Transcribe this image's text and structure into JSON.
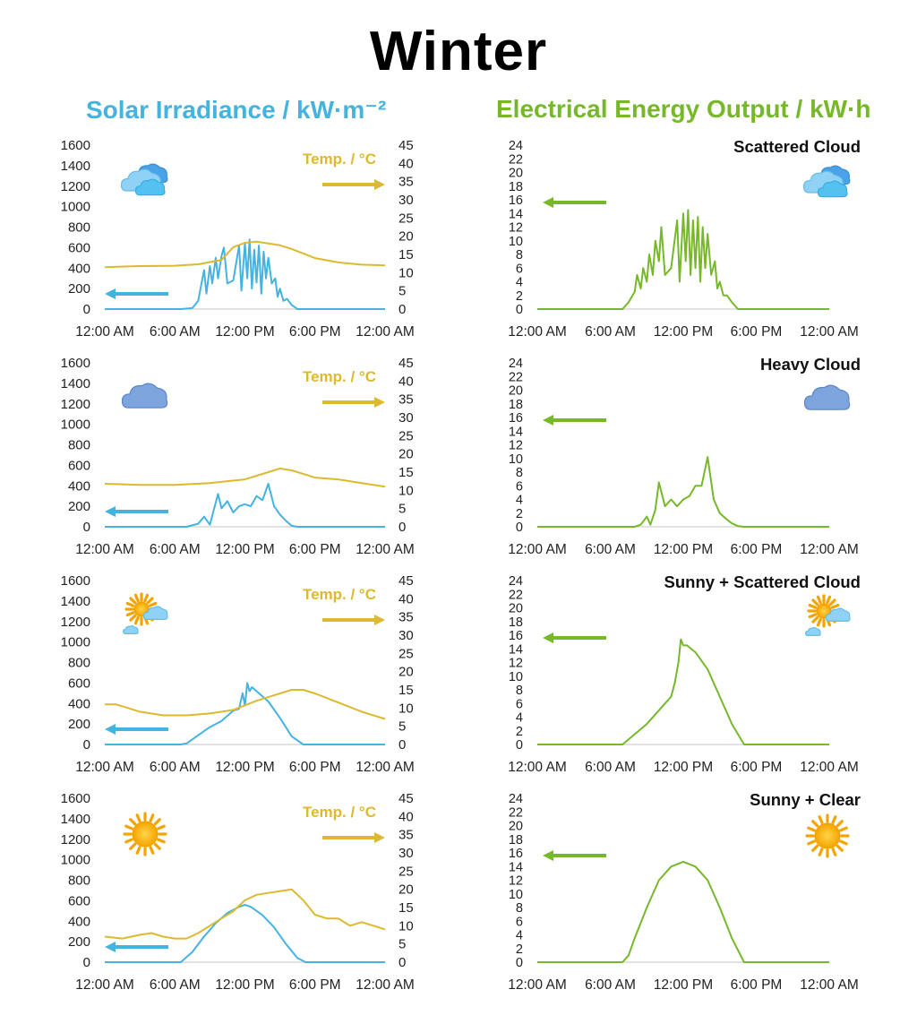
{
  "page_title": "Winter",
  "left_heading": "Solar Irradiance / kW·m⁻²",
  "right_heading": "Electrical Energy Output / kW·h",
  "colors": {
    "irradiance": "#45b3e0",
    "temperature": "#dcb92e",
    "energy": "#76b82a",
    "axis": "#d9d9d9"
  },
  "chart_data": [
    {
      "type": "line",
      "panel": "irradiance",
      "condition_icon": "scattered-cloud-icon",
      "x_ticks": [
        "12:00 AM",
        "6:00 AM",
        "12:00 PM",
        "6:00 PM",
        "12:00 AM"
      ],
      "x_range": [
        0,
        24
      ],
      "y_ticks": [
        "0",
        "200",
        "400",
        "600",
        "800",
        "1000",
        "1200",
        "1400",
        "1600"
      ],
      "ylim": [
        0,
        1600
      ],
      "y2_ticks": [
        "0",
        "5",
        "10",
        "15",
        "20",
        "25",
        "30",
        "35",
        "40",
        "45"
      ],
      "y2lim": [
        0,
        45
      ],
      "y2label": "Temp. / °C",
      "series": [
        {
          "role": "irradiance",
          "x": [
            0,
            6.5,
            7.5,
            8,
            8.2,
            8.5,
            8.7,
            9,
            9.2,
            9.5,
            9.7,
            10,
            10.2,
            10.5,
            11,
            11.5,
            11.7,
            12,
            12.2,
            12.4,
            12.6,
            12.8,
            13,
            13.2,
            13.4,
            13.6,
            13.8,
            14,
            14.3,
            14.6,
            14.8,
            15,
            15.3,
            15.6,
            16,
            16.5,
            24
          ],
          "y": [
            0,
            0,
            10,
            80,
            200,
            380,
            150,
            420,
            250,
            500,
            300,
            520,
            600,
            250,
            280,
            620,
            180,
            640,
            300,
            680,
            200,
            580,
            260,
            620,
            150,
            560,
            300,
            500,
            250,
            300,
            120,
            200,
            80,
            100,
            40,
            0,
            0
          ]
        },
        {
          "role": "temperature",
          "x": [
            0,
            3,
            6,
            8,
            10,
            11,
            12,
            13,
            14,
            15,
            16,
            18,
            20,
            22,
            24
          ],
          "y": [
            11.5,
            11.8,
            11.9,
            12.3,
            13.5,
            17,
            18.2,
            18.5,
            18,
            17.5,
            16.5,
            14,
            12.8,
            12.2,
            12
          ]
        }
      ]
    },
    {
      "type": "line",
      "panel": "energy",
      "title": "Scattered Cloud",
      "condition_icon": "scattered-cloud-icon",
      "x_ticks": [
        "12:00 AM",
        "6:00 AM",
        "12:00 PM",
        "6:00 PM",
        "12:00 AM"
      ],
      "x_range": [
        0,
        24
      ],
      "y_ticks": [
        "0",
        "2",
        "4",
        "6",
        "8",
        "10",
        "12",
        "14",
        "16",
        "18",
        "20",
        "22",
        "24"
      ],
      "ylim": [
        0,
        24
      ],
      "series": [
        {
          "role": "energy",
          "x": [
            0,
            7,
            7.5,
            8,
            8.2,
            8.5,
            8.7,
            9,
            9.2,
            9.5,
            9.7,
            10,
            10.2,
            10.5,
            11,
            11.5,
            11.7,
            12,
            12.2,
            12.4,
            12.6,
            12.8,
            13,
            13.2,
            13.4,
            13.6,
            13.8,
            14,
            14.3,
            14.6,
            14.8,
            15,
            15.3,
            15.6,
            16,
            16.5,
            24
          ],
          "y": [
            0,
            0,
            1,
            2.5,
            5,
            3,
            6,
            4,
            8,
            5,
            10,
            7,
            12,
            5,
            6,
            13,
            4,
            14,
            7,
            14.5,
            5,
            13,
            6,
            13.5,
            4,
            12,
            6,
            11,
            5,
            7,
            3,
            4,
            2,
            2,
            1,
            0,
            0
          ]
        }
      ]
    },
    {
      "type": "line",
      "panel": "irradiance",
      "condition_icon": "heavy-cloud-icon",
      "x_ticks": [
        "12:00 AM",
        "6:00 AM",
        "12:00 PM",
        "6:00 PM",
        "12:00 AM"
      ],
      "x_range": [
        0,
        24
      ],
      "y_ticks": [
        "0",
        "200",
        "400",
        "600",
        "800",
        "1000",
        "1200",
        "1400",
        "1600"
      ],
      "ylim": [
        0,
        1600
      ],
      "y2_ticks": [
        "0",
        "5",
        "10",
        "15",
        "20",
        "25",
        "30",
        "35",
        "40",
        "45"
      ],
      "y2lim": [
        0,
        45
      ],
      "y2label": "Temp. / °C",
      "series": [
        {
          "role": "irradiance",
          "x": [
            0,
            7,
            8,
            8.5,
            9,
            9.3,
            9.7,
            10,
            10.5,
            11,
            11.5,
            12,
            12.5,
            13,
            13.5,
            14,
            14.5,
            15,
            15.5,
            16,
            16.5,
            24
          ],
          "y": [
            0,
            0,
            30,
            100,
            20,
            150,
            320,
            180,
            250,
            140,
            200,
            220,
            200,
            300,
            260,
            420,
            200,
            120,
            60,
            10,
            0,
            0
          ]
        },
        {
          "role": "temperature",
          "x": [
            0,
            3,
            6,
            9,
            12,
            14,
            15,
            16,
            18,
            20,
            22,
            24
          ],
          "y": [
            11.8,
            11.5,
            11.5,
            12,
            13,
            15,
            16,
            15.5,
            13.5,
            13,
            12,
            11
          ]
        }
      ]
    },
    {
      "type": "line",
      "panel": "energy",
      "title": "Heavy Cloud",
      "condition_icon": "heavy-cloud-icon",
      "x_ticks": [
        "12:00 AM",
        "6:00 AM",
        "12:00 PM",
        "6:00 PM",
        "12:00 AM"
      ],
      "x_range": [
        0,
        24
      ],
      "y_ticks": [
        "0",
        "2",
        "4",
        "6",
        "8",
        "10",
        "12",
        "14",
        "16",
        "18",
        "20",
        "22",
        "24"
      ],
      "ylim": [
        0,
        24
      ],
      "series": [
        {
          "role": "energy",
          "x": [
            0,
            8,
            8.5,
            9,
            9.3,
            9.7,
            10,
            10.5,
            11,
            11.5,
            12,
            12.5,
            13,
            13.5,
            14,
            14.5,
            15,
            15.5,
            16,
            16.5,
            17,
            24
          ],
          "y": [
            0,
            0,
            0.3,
            1.5,
            0.3,
            2.5,
            6.5,
            3,
            4,
            3,
            4,
            4.5,
            6,
            6,
            10.2,
            4,
            2,
            1.2,
            0.5,
            0.1,
            0,
            0
          ]
        }
      ]
    },
    {
      "type": "line",
      "panel": "irradiance",
      "condition_icon": "sunny-scattered-cloud-icon",
      "x_ticks": [
        "12:00 AM",
        "6:00 AM",
        "12:00 PM",
        "6:00 PM",
        "12:00 AM"
      ],
      "x_range": [
        0,
        24
      ],
      "y_ticks": [
        "0",
        "200",
        "400",
        "600",
        "800",
        "1000",
        "1200",
        "1400",
        "1600"
      ],
      "ylim": [
        0,
        1600
      ],
      "y2_ticks": [
        "0",
        "5",
        "10",
        "15",
        "20",
        "25",
        "30",
        "35",
        "40",
        "45"
      ],
      "y2lim": [
        0,
        45
      ],
      "y2label": "Temp. / °C",
      "series": [
        {
          "role": "irradiance",
          "x": [
            0,
            6.5,
            7,
            8,
            9,
            10,
            10.5,
            11,
            11.5,
            11.8,
            12,
            12.2,
            12.4,
            12.6,
            13,
            14,
            15,
            16,
            17,
            24
          ],
          "y": [
            0,
            0,
            10,
            90,
            170,
            230,
            280,
            330,
            350,
            500,
            380,
            600,
            520,
            560,
            520,
            420,
            260,
            80,
            0,
            0
          ]
        },
        {
          "role": "temperature",
          "x": [
            0,
            1,
            3,
            5,
            7,
            9,
            11,
            13,
            15,
            16,
            17,
            18,
            20,
            22,
            24
          ],
          "y": [
            11,
            11,
            9,
            8,
            8,
            8.5,
            9.5,
            12,
            14,
            15,
            15,
            14,
            11.5,
            9,
            7
          ]
        }
      ]
    },
    {
      "type": "line",
      "panel": "energy",
      "title": "Sunny + Scattered Cloud",
      "condition_icon": "sunny-scattered-cloud-icon",
      "x_ticks": [
        "12:00 AM",
        "6:00 AM",
        "12:00 PM",
        "6:00 PM",
        "12:00 AM"
      ],
      "x_range": [
        0,
        24
      ],
      "y_ticks": [
        "0",
        "2",
        "4",
        "6",
        "8",
        "10",
        "12",
        "14",
        "16",
        "18",
        "20",
        "22",
        "24"
      ],
      "ylim": [
        0,
        24
      ],
      "series": [
        {
          "role": "energy",
          "x": [
            0,
            7,
            8,
            9,
            10,
            10.5,
            11,
            11.3,
            11.6,
            11.8,
            12,
            12.3,
            13,
            14,
            15,
            16,
            17,
            24
          ],
          "y": [
            0,
            0,
            1.5,
            3,
            5,
            6,
            7,
            9,
            12,
            15.4,
            14.5,
            14.5,
            13.5,
            11,
            7,
            3,
            0,
            0
          ]
        }
      ]
    },
    {
      "type": "line",
      "panel": "irradiance",
      "condition_icon": "sunny-clear-icon",
      "x_ticks": [
        "12:00 AM",
        "6:00 AM",
        "12:00 PM",
        "6:00 PM",
        "12:00 AM"
      ],
      "x_range": [
        0,
        24
      ],
      "y_ticks": [
        "0",
        "200",
        "400",
        "600",
        "800",
        "1000",
        "1200",
        "1400",
        "1600"
      ],
      "ylim": [
        0,
        1600
      ],
      "y2_ticks": [
        "0",
        "5",
        "10",
        "15",
        "20",
        "25",
        "30",
        "35",
        "40",
        "45"
      ],
      "y2lim": [
        0,
        45
      ],
      "y2label": "Temp. / °C",
      "series": [
        {
          "role": "irradiance",
          "x": [
            0,
            6.5,
            7.5,
            8.5,
            9.5,
            10.5,
            11.5,
            12,
            12.5,
            13.5,
            14.5,
            15.5,
            16.5,
            17.2,
            24
          ],
          "y": [
            0,
            0,
            100,
            250,
            380,
            480,
            540,
            560,
            540,
            460,
            340,
            180,
            40,
            0,
            0
          ]
        },
        {
          "role": "temperature",
          "x": [
            0,
            1.5,
            3,
            4,
            5,
            6,
            7,
            8,
            9,
            10,
            11,
            12,
            13,
            14,
            15,
            16,
            17,
            18,
            19,
            20,
            21,
            22,
            23,
            24
          ],
          "y": [
            7,
            6.5,
            7.5,
            8,
            7,
            6.5,
            6.5,
            8,
            10,
            12,
            14,
            17,
            18.5,
            19,
            19.5,
            20,
            17,
            13,
            12,
            12,
            10,
            11,
            10,
            9
          ]
        }
      ]
    },
    {
      "type": "line",
      "panel": "energy",
      "title": "Sunny + Clear",
      "condition_icon": "sunny-clear-icon",
      "x_ticks": [
        "12:00 AM",
        "6:00 AM",
        "12:00 PM",
        "6:00 PM",
        "12:00 AM"
      ],
      "x_range": [
        0,
        24
      ],
      "y_ticks": [
        "0",
        "2",
        "4",
        "6",
        "8",
        "10",
        "12",
        "14",
        "16",
        "18",
        "20",
        "22",
        "24"
      ],
      "ylim": [
        0,
        24
      ],
      "series": [
        {
          "role": "energy",
          "x": [
            0,
            7,
            7.5,
            8,
            9,
            10,
            11,
            12,
            13,
            14,
            15,
            16,
            17,
            24
          ],
          "y": [
            0,
            0,
            1,
            3.5,
            8,
            12,
            14,
            14.7,
            14,
            12,
            8,
            3.5,
            0,
            0
          ]
        }
      ]
    }
  ]
}
